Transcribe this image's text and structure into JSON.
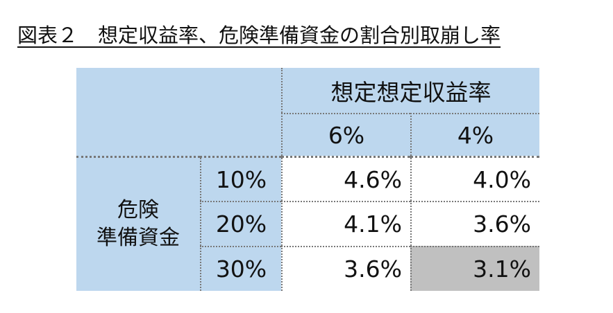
{
  "title": "図表２　想定収益率、危険準備資金の割合別取崩し率",
  "table": {
    "column_group": "想定想定収益率",
    "columns": [
      "6%",
      "4%"
    ],
    "row_group": [
      "危険",
      "準備資金"
    ],
    "rows": [
      [
        "10%",
        "4.6%",
        "4.0%"
      ],
      [
        "20%",
        "4.1%",
        "3.6%"
      ],
      [
        "30%",
        "3.6%",
        "3.1%"
      ]
    ]
  }
}
